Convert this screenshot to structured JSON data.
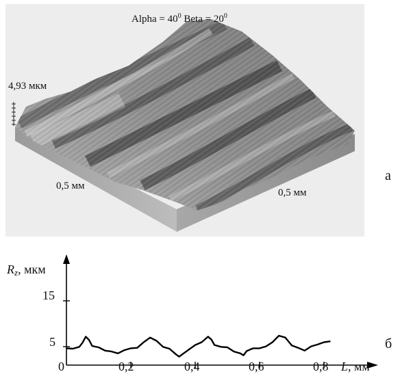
{
  "panel_a": {
    "caption_alpha": "Alpha = 40",
    "caption_beta": " Beta = 20",
    "caption_sup": "0",
    "height_label": "4,93 мкм",
    "x_side_label": "0,5 мм",
    "y_side_label": "0,5 мм",
    "letter": "а"
  },
  "chart_data": {
    "type": "line",
    "ylabel_symbol": "R",
    "ylabel_sub": "z",
    "ylabel_unit": ", мкм",
    "xlabel_symbol": "L",
    "xlabel_unit": ", мм",
    "y_ticks": [
      "15",
      "5"
    ],
    "x_ticks": [
      "0",
      "0,2",
      "0,4",
      "0,6",
      "0,8"
    ],
    "xlim": [
      0,
      0.92
    ],
    "ylim": [
      0,
      22
    ],
    "series": [
      {
        "x": [
          0.0,
          0.02,
          0.04,
          0.05,
          0.06,
          0.07,
          0.08,
          0.1,
          0.12,
          0.14,
          0.16,
          0.18,
          0.2,
          0.22,
          0.24,
          0.26,
          0.28,
          0.3,
          0.32,
          0.34,
          0.35,
          0.36,
          0.38,
          0.4,
          0.42,
          0.44,
          0.45,
          0.46,
          0.48,
          0.5,
          0.52,
          0.54,
          0.55,
          0.56,
          0.58,
          0.6,
          0.62,
          0.64,
          0.66,
          0.68,
          0.7,
          0.72,
          0.74,
          0.76,
          0.78,
          0.8,
          0.82
        ],
        "y": [
          2.3,
          2.2,
          2.6,
          3.5,
          4.8,
          4.1,
          2.8,
          2.5,
          1.8,
          1.6,
          1.2,
          1.9,
          2.3,
          2.4,
          3.6,
          4.6,
          3.9,
          2.6,
          2.2,
          1.0,
          0.5,
          1.0,
          2.0,
          3.0,
          3.6,
          4.8,
          4.2,
          3.0,
          2.6,
          2.5,
          1.6,
          1.2,
          0.8,
          1.7,
          2.3,
          2.3,
          2.7,
          3.6,
          5.0,
          4.6,
          2.9,
          2.4,
          1.8,
          2.7,
          3.1,
          3.6,
          3.8
        ]
      }
    ],
    "letter": "б"
  }
}
